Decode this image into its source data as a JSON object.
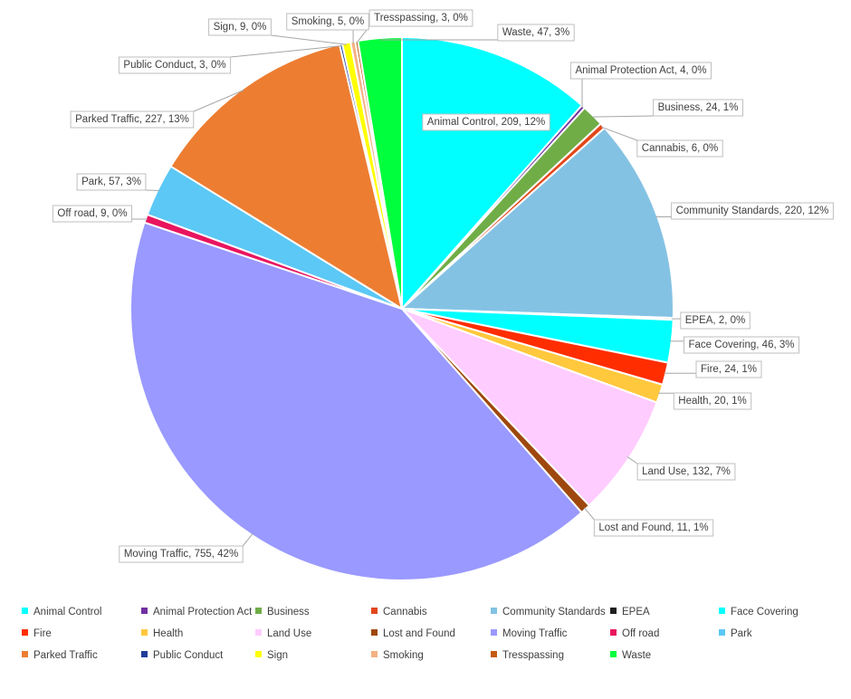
{
  "chart_data": {
    "type": "pie",
    "title": "",
    "slices": [
      {
        "name": "Animal Control",
        "value": 209,
        "pct": "12%",
        "color": "#00FFFF"
      },
      {
        "name": "Animal Protection Act",
        "value": 4,
        "pct": "0%",
        "color": "#7030A0"
      },
      {
        "name": "Business",
        "value": 24,
        "pct": "1%",
        "color": "#70AD47"
      },
      {
        "name": "Cannabis",
        "value": 6,
        "pct": "0%",
        "color": "#E2471A"
      },
      {
        "name": "Community Standards",
        "value": 220,
        "pct": "12%",
        "color": "#84C2E4"
      },
      {
        "name": "EPEA",
        "value": 2,
        "pct": "0%",
        "color": "#1F1F1F"
      },
      {
        "name": "Face Covering",
        "value": 46,
        "pct": "3%",
        "color": "#00FFFF"
      },
      {
        "name": "Fire",
        "value": 24,
        "pct": "1%",
        "color": "#FF2D00"
      },
      {
        "name": "Health",
        "value": 20,
        "pct": "1%",
        "color": "#FFC83D"
      },
      {
        "name": "Land Use",
        "value": 132,
        "pct": "7%",
        "color": "#FFCCFF"
      },
      {
        "name": "Lost and Found",
        "value": 11,
        "pct": "1%",
        "color": "#9E480E"
      },
      {
        "name": "Moving Traffic",
        "value": 755,
        "pct": "42%",
        "color": "#9999FF"
      },
      {
        "name": "Off road",
        "value": 9,
        "pct": "0%",
        "color": "#E8155E"
      },
      {
        "name": "Park",
        "value": 57,
        "pct": "3%",
        "color": "#5BC8F5"
      },
      {
        "name": "Parked Traffic",
        "value": 227,
        "pct": "13%",
        "color": "#ED7D31"
      },
      {
        "name": "Public Conduct",
        "value": 3,
        "pct": "0%",
        "color": "#1F3D99"
      },
      {
        "name": "Sign",
        "value": 9,
        "pct": "0%",
        "color": "#FFFF00"
      },
      {
        "name": "Smoking",
        "value": 5,
        "pct": "0%",
        "color": "#F4B183"
      },
      {
        "name": "Tresspassing",
        "value": 3,
        "pct": "0%",
        "color": "#C55A11"
      },
      {
        "name": "Waste",
        "value": 47,
        "pct": "3%",
        "color": "#00FF3C"
      }
    ],
    "legend": {
      "placement": "bottom"
    }
  }
}
